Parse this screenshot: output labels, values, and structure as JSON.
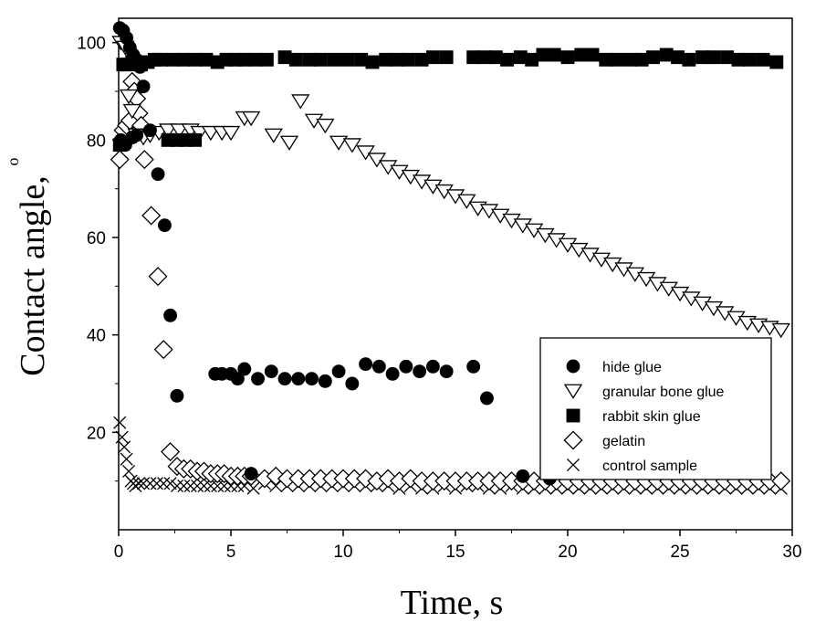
{
  "chart_data": {
    "type": "scatter",
    "xlabel": "Time, s",
    "ylabel": "Contact angle,",
    "ylabel_unit": "o",
    "xlim": [
      0,
      30
    ],
    "ylim": [
      0,
      105
    ],
    "xticks": [
      0,
      5,
      10,
      15,
      20,
      25,
      30
    ],
    "yticks": [
      20,
      40,
      60,
      80,
      100
    ],
    "grid": false,
    "legend_position": "bottom-right",
    "series": [
      {
        "name": "hide glue",
        "marker": "filled-circle",
        "points": [
          [
            0.05,
            103
          ],
          [
            0.2,
            102.5
          ],
          [
            0.35,
            101
          ],
          [
            0.5,
            99
          ],
          [
            0.65,
            97.5
          ],
          [
            0.8,
            96.5
          ],
          [
            0.95,
            95
          ],
          [
            0.1,
            80
          ],
          [
            0.3,
            79
          ],
          [
            0.6,
            80.5
          ],
          [
            0.8,
            81
          ],
          [
            1.1,
            91
          ],
          [
            1.4,
            82
          ],
          [
            1.75,
            73
          ],
          [
            2.05,
            62.5
          ],
          [
            2.3,
            44
          ],
          [
            2.6,
            27.5
          ],
          [
            4.3,
            32
          ],
          [
            4.6,
            32
          ],
          [
            5.0,
            32
          ],
          [
            5.3,
            31
          ],
          [
            5.6,
            33
          ],
          [
            6.2,
            31
          ],
          [
            6.8,
            32.5
          ],
          [
            7.4,
            31
          ],
          [
            8.0,
            31
          ],
          [
            8.6,
            31
          ],
          [
            9.2,
            30.5
          ],
          [
            9.8,
            32.5
          ],
          [
            10.4,
            30
          ],
          [
            11.0,
            34
          ],
          [
            11.6,
            33.5
          ],
          [
            12.2,
            32
          ],
          [
            12.8,
            33.5
          ],
          [
            13.4,
            32.5
          ],
          [
            14.0,
            33.5
          ],
          [
            14.6,
            32.5
          ],
          [
            15.8,
            33.5
          ],
          [
            16.4,
            27
          ],
          [
            5.9,
            11.5
          ],
          [
            18.0,
            11
          ],
          [
            19.2,
            10.5
          ]
        ]
      },
      {
        "name": "granular bone glue",
        "marker": "open-triangle-down",
        "points": [
          [
            0.1,
            100
          ],
          [
            0.3,
            99
          ],
          [
            0.45,
            89
          ],
          [
            0.6,
            86
          ],
          [
            0.8,
            81
          ],
          [
            1.1,
            80.5
          ],
          [
            1.4,
            81
          ],
          [
            1.8,
            81.5
          ],
          [
            2.2,
            82
          ],
          [
            2.7,
            82
          ],
          [
            3.2,
            82
          ],
          [
            3.6,
            81.5
          ],
          [
            4.1,
            81.5
          ],
          [
            4.6,
            81.5
          ],
          [
            5.0,
            81.5
          ],
          [
            5.6,
            84.5
          ],
          [
            5.9,
            84.5
          ],
          [
            6.9,
            81
          ],
          [
            7.6,
            79.5
          ],
          [
            8.1,
            88
          ],
          [
            8.7,
            84
          ],
          [
            9.2,
            83
          ],
          [
            9.8,
            79.5
          ],
          [
            10.4,
            79
          ],
          [
            11.0,
            77.5
          ],
          [
            11.5,
            76
          ],
          [
            12.0,
            74.5
          ],
          [
            12.5,
            73.5
          ],
          [
            13.0,
            72.5
          ],
          [
            13.5,
            71.5
          ],
          [
            14.0,
            70.5
          ],
          [
            14.5,
            69.5
          ],
          [
            15.0,
            68.5
          ],
          [
            15.5,
            67.5
          ],
          [
            16.0,
            66
          ],
          [
            16.5,
            65.5
          ],
          [
            17.0,
            64.5
          ],
          [
            17.5,
            63.5
          ],
          [
            18.0,
            62.5
          ],
          [
            18.5,
            61.5
          ],
          [
            19.0,
            60.5
          ],
          [
            19.5,
            59.5
          ],
          [
            20.0,
            58.5
          ],
          [
            20.5,
            57.5
          ],
          [
            21.0,
            56.5
          ],
          [
            21.5,
            55.5
          ],
          [
            22.0,
            54.5
          ],
          [
            22.5,
            53.5
          ],
          [
            23.0,
            52.5
          ],
          [
            23.5,
            51.5
          ],
          [
            24.0,
            50.5
          ],
          [
            24.5,
            49.5
          ],
          [
            25.0,
            48.5
          ],
          [
            25.5,
            47.5
          ],
          [
            26.0,
            46.5
          ],
          [
            26.5,
            45.5
          ],
          [
            27.0,
            44.5
          ],
          [
            27.5,
            43.5
          ],
          [
            28.0,
            42.5
          ],
          [
            28.5,
            42
          ],
          [
            29.0,
            41.5
          ],
          [
            29.5,
            41
          ]
        ]
      },
      {
        "name": "rabbit skin glue",
        "marker": "filled-square",
        "points": [
          [
            0.05,
            79
          ],
          [
            0.2,
            95.5
          ],
          [
            0.4,
            95.5
          ],
          [
            0.6,
            96
          ],
          [
            0.8,
            96
          ],
          [
            1.0,
            95.5
          ],
          [
            1.3,
            96
          ],
          [
            1.6,
            96.5
          ],
          [
            1.9,
            96.5
          ],
          [
            2.2,
            80
          ],
          [
            2.6,
            80
          ],
          [
            3.0,
            80
          ],
          [
            3.4,
            80
          ],
          [
            2.4,
            96.5
          ],
          [
            2.9,
            96.5
          ],
          [
            3.4,
            96.5
          ],
          [
            3.9,
            96.5
          ],
          [
            4.4,
            96
          ],
          [
            4.8,
            96.5
          ],
          [
            5.2,
            96.5
          ],
          [
            5.6,
            96.5
          ],
          [
            6.1,
            96.5
          ],
          [
            6.6,
            96.5
          ],
          [
            7.4,
            97
          ],
          [
            7.9,
            96.5
          ],
          [
            8.5,
            96.5
          ],
          [
            9.0,
            96.5
          ],
          [
            9.6,
            96.5
          ],
          [
            10.2,
            96.5
          ],
          [
            10.8,
            96.5
          ],
          [
            11.3,
            96
          ],
          [
            11.9,
            96.5
          ],
          [
            12.4,
            96.5
          ],
          [
            12.9,
            96.5
          ],
          [
            13.5,
            96.5
          ],
          [
            14.0,
            97
          ],
          [
            14.6,
            97
          ],
          [
            15.8,
            97
          ],
          [
            16.3,
            97
          ],
          [
            16.8,
            97
          ],
          [
            17.3,
            96.5
          ],
          [
            17.9,
            97
          ],
          [
            18.4,
            96.5
          ],
          [
            18.9,
            97.5
          ],
          [
            19.4,
            97.5
          ],
          [
            20.0,
            97
          ],
          [
            20.6,
            97.5
          ],
          [
            21.1,
            97.5
          ],
          [
            21.7,
            96.5
          ],
          [
            22.2,
            96.5
          ],
          [
            22.8,
            96.5
          ],
          [
            23.3,
            96.5
          ],
          [
            23.8,
            97
          ],
          [
            24.4,
            97.5
          ],
          [
            24.9,
            97
          ],
          [
            25.4,
            96.5
          ],
          [
            26.0,
            97
          ],
          [
            26.5,
            97
          ],
          [
            27.1,
            97
          ],
          [
            27.6,
            96.5
          ],
          [
            28.1,
            96.5
          ],
          [
            28.7,
            96.5
          ],
          [
            29.3,
            96
          ]
        ]
      },
      {
        "name": "gelatin",
        "marker": "open-diamond",
        "points": [
          [
            0.05,
            76
          ],
          [
            0.2,
            82
          ],
          [
            0.35,
            83
          ],
          [
            0.5,
            84
          ],
          [
            0.6,
            92
          ],
          [
            0.7,
            90
          ],
          [
            0.8,
            88.5
          ],
          [
            0.9,
            85.5
          ],
          [
            1.0,
            83
          ],
          [
            1.15,
            76
          ],
          [
            1.45,
            64.5
          ],
          [
            1.75,
            52
          ],
          [
            2.0,
            37
          ],
          [
            2.3,
            16
          ],
          [
            2.6,
            13
          ],
          [
            2.9,
            12.5
          ],
          [
            3.2,
            12.5
          ],
          [
            3.5,
            12
          ],
          [
            3.8,
            12
          ],
          [
            4.1,
            11.5
          ],
          [
            4.4,
            11.5
          ],
          [
            4.7,
            11.5
          ],
          [
            5.0,
            11
          ],
          [
            5.3,
            11
          ],
          [
            5.6,
            11
          ],
          [
            5.9,
            11
          ],
          [
            6.5,
            10.5
          ],
          [
            7.0,
            11
          ],
          [
            7.5,
            10.5
          ],
          [
            8.0,
            10.5
          ],
          [
            8.5,
            10.5
          ],
          [
            9.0,
            10.5
          ],
          [
            9.5,
            10.5
          ],
          [
            10.0,
            10.5
          ],
          [
            10.5,
            10.5
          ],
          [
            11.0,
            10.5
          ],
          [
            11.5,
            10
          ],
          [
            12.0,
            10.5
          ],
          [
            12.5,
            10
          ],
          [
            13.0,
            10.5
          ],
          [
            13.5,
            10
          ],
          [
            14.0,
            10
          ],
          [
            14.5,
            10
          ],
          [
            15.0,
            10
          ],
          [
            15.5,
            10
          ],
          [
            16.0,
            10
          ],
          [
            16.5,
            10
          ],
          [
            17.0,
            10
          ],
          [
            17.5,
            10
          ],
          [
            18.0,
            10
          ],
          [
            18.5,
            10
          ],
          [
            19.0,
            10
          ],
          [
            19.5,
            10
          ],
          [
            20.0,
            10
          ],
          [
            20.5,
            10
          ],
          [
            21.0,
            10
          ],
          [
            21.5,
            10
          ],
          [
            22.0,
            10
          ],
          [
            22.5,
            10
          ],
          [
            23.0,
            10
          ],
          [
            23.5,
            10
          ],
          [
            24.0,
            10
          ],
          [
            24.5,
            10
          ],
          [
            25.0,
            10
          ],
          [
            25.5,
            10
          ],
          [
            26.0,
            10
          ],
          [
            26.5,
            10
          ],
          [
            27.0,
            10
          ],
          [
            27.5,
            10
          ],
          [
            28.0,
            10
          ],
          [
            28.5,
            10
          ],
          [
            29.0,
            10
          ],
          [
            29.5,
            10
          ]
        ]
      },
      {
        "name": "control sample",
        "marker": "cross",
        "points": [
          [
            0.05,
            22
          ],
          [
            0.15,
            19
          ],
          [
            0.25,
            17
          ],
          [
            0.35,
            14.5
          ],
          [
            0.45,
            12
          ],
          [
            0.55,
            10
          ],
          [
            0.65,
            9.5
          ],
          [
            0.75,
            9
          ],
          [
            0.9,
            9.5
          ],
          [
            1.1,
            9.5
          ],
          [
            1.4,
            9.5
          ],
          [
            1.7,
            9.5
          ],
          [
            2.0,
            9.5
          ],
          [
            2.3,
            9.5
          ],
          [
            2.6,
            9
          ],
          [
            2.9,
            9
          ],
          [
            3.2,
            9
          ],
          [
            3.5,
            9
          ],
          [
            3.8,
            9
          ],
          [
            4.1,
            9
          ],
          [
            4.4,
            9
          ],
          [
            4.7,
            9
          ],
          [
            5.0,
            9
          ],
          [
            5.3,
            9
          ],
          [
            5.6,
            9
          ],
          [
            6.0,
            8.5
          ],
          [
            6.5,
            9.5
          ],
          [
            7.0,
            9
          ],
          [
            7.5,
            9
          ],
          [
            8.0,
            9
          ],
          [
            8.5,
            9
          ],
          [
            9.0,
            9
          ],
          [
            9.5,
            9
          ],
          [
            10.0,
            9
          ],
          [
            10.5,
            9
          ],
          [
            11.0,
            9
          ],
          [
            11.5,
            9
          ],
          [
            12.0,
            9
          ],
          [
            12.5,
            8.5
          ],
          [
            13.0,
            9
          ],
          [
            13.5,
            8.5
          ],
          [
            14.0,
            8.5
          ],
          [
            14.5,
            9
          ],
          [
            15.0,
            8.5
          ],
          [
            15.5,
            9
          ],
          [
            16.0,
            9
          ],
          [
            16.5,
            8.5
          ],
          [
            17.0,
            8.5
          ],
          [
            17.5,
            9
          ],
          [
            18.0,
            8.5
          ],
          [
            18.5,
            8.5
          ],
          [
            19.0,
            8.5
          ],
          [
            19.5,
            8.5
          ],
          [
            20.0,
            8.5
          ],
          [
            20.5,
            8.5
          ],
          [
            21.0,
            8.5
          ],
          [
            21.5,
            8.5
          ],
          [
            22.0,
            8.5
          ],
          [
            22.5,
            8.5
          ],
          [
            23.0,
            8.5
          ],
          [
            23.5,
            8.5
          ],
          [
            24.0,
            8.5
          ],
          [
            24.5,
            8.5
          ],
          [
            25.0,
            8.5
          ],
          [
            25.5,
            8.5
          ],
          [
            26.0,
            8.5
          ],
          [
            26.5,
            8.5
          ],
          [
            27.0,
            8.5
          ],
          [
            27.5,
            8.5
          ],
          [
            28.0,
            8.5
          ],
          [
            28.5,
            8.5
          ],
          [
            29.0,
            8.5
          ],
          [
            29.5,
            8.5
          ]
        ]
      }
    ]
  }
}
